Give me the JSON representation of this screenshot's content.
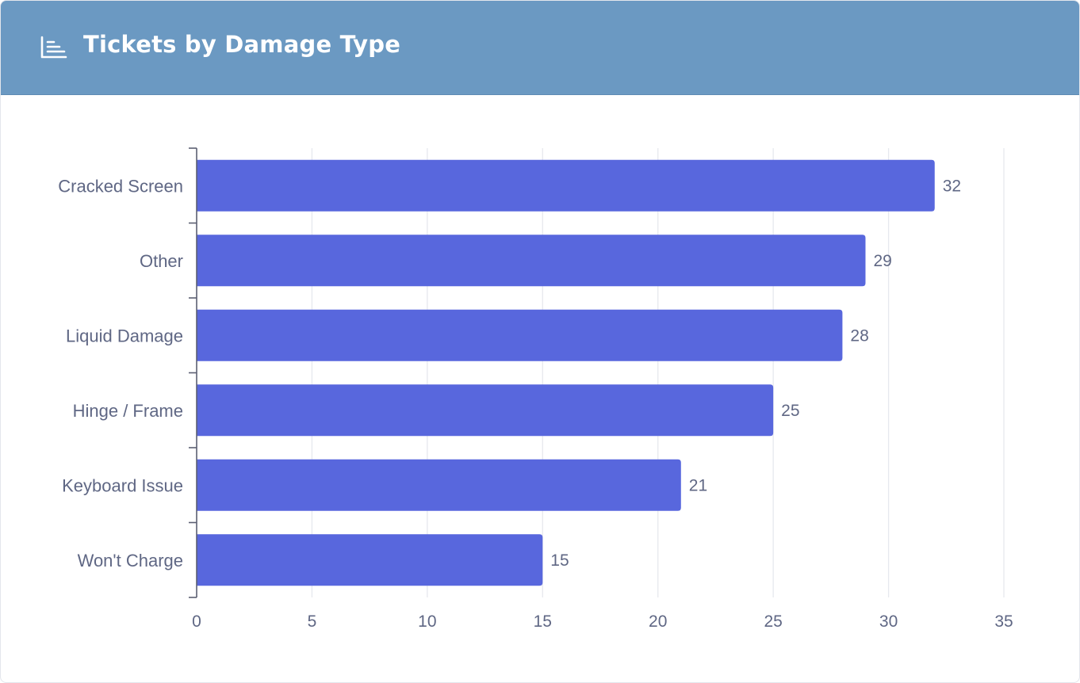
{
  "header": {
    "title": "Tickets by Damage Type",
    "icon": "bar-chart-icon"
  },
  "colors": {
    "header_bg": "#6b99c2",
    "bar": "#5867dd",
    "grid": "#e6e8ee",
    "axis": "#5b5f72",
    "label_text": "#5f6784"
  },
  "chart_data": {
    "type": "bar",
    "orientation": "horizontal",
    "title": "Tickets by Damage Type",
    "xlabel": "",
    "ylabel": "",
    "categories": [
      "Cracked Screen",
      "Other",
      "Liquid Damage",
      "Hinge / Frame",
      "Keyboard Issue",
      "Won't Charge"
    ],
    "values": [
      32,
      29,
      28,
      25,
      21,
      15
    ],
    "xlim": [
      0,
      35
    ],
    "xticks": [
      0,
      5,
      10,
      15,
      20,
      25,
      30,
      35
    ],
    "grid": "vertical",
    "data_labels": true,
    "legend": "none"
  }
}
